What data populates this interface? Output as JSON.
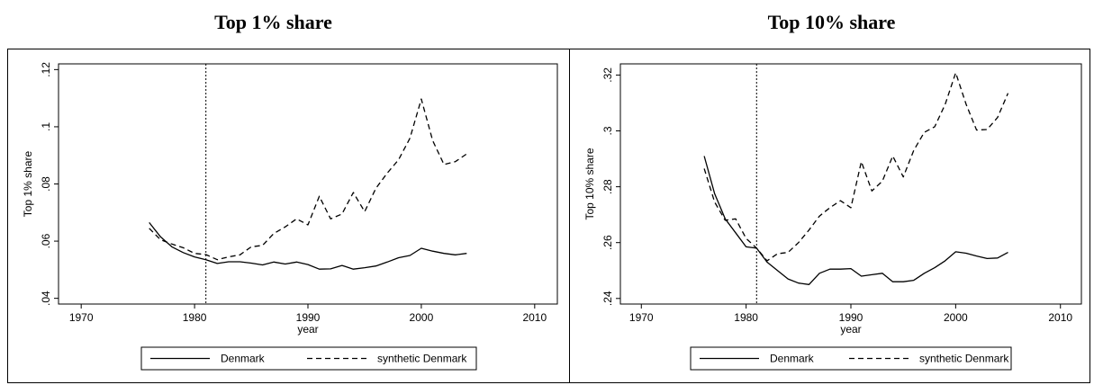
{
  "chart_data": [
    {
      "type": "line",
      "title": "Top 1% share",
      "xlabel": "year",
      "ylabel": "Top 1% share",
      "xlim": [
        1968,
        2012
      ],
      "ylim": [
        0.038,
        0.122
      ],
      "xticks": [
        1970,
        1980,
        1990,
        2000,
        2010
      ],
      "yticks": [
        0.04,
        0.06,
        0.08,
        0.1,
        0.12
      ],
      "ytick_labels": [
        ".04",
        ".06",
        ".08",
        ".1",
        ".12"
      ],
      "treatment_year": 1981,
      "grid": false,
      "legend_position": "bottom",
      "series": [
        {
          "name": "Denmark",
          "style": "solid",
          "x": [
            1976,
            1977,
            1978,
            1979,
            1980,
            1981,
            1982,
            1983,
            1984,
            1985,
            1986,
            1987,
            1988,
            1989,
            1990,
            1991,
            1992,
            1993,
            1994,
            1995,
            1996,
            1997,
            1998,
            1999,
            2000,
            2001,
            2002,
            2003,
            2004
          ],
          "y": [
            0.0665,
            0.0615,
            0.058,
            0.056,
            0.0545,
            0.0535,
            0.0522,
            0.0528,
            0.0528,
            0.0523,
            0.0517,
            0.0527,
            0.052,
            0.0527,
            0.0518,
            0.0502,
            0.0503,
            0.0515,
            0.0502,
            0.0507,
            0.0513,
            0.0527,
            0.0542,
            0.055,
            0.0575,
            0.0565,
            0.0557,
            0.0552,
            0.0557
          ]
        },
        {
          "name": "synthetic Denmark",
          "style": "dashed",
          "x": [
            1976,
            1977,
            1978,
            1979,
            1980,
            1981,
            1982,
            1983,
            1984,
            1985,
            1986,
            1987,
            1988,
            1989,
            1990,
            1991,
            1992,
            1993,
            1994,
            1995,
            1996,
            1997,
            1998,
            1999,
            2000,
            2001,
            2002,
            2003,
            2004
          ],
          "y": [
            0.0645,
            0.0605,
            0.059,
            0.0577,
            0.0557,
            0.0553,
            0.0535,
            0.0545,
            0.0552,
            0.058,
            0.0585,
            0.0627,
            0.065,
            0.0678,
            0.0657,
            0.0757,
            0.0678,
            0.0695,
            0.077,
            0.0703,
            0.0785,
            0.0838,
            0.0885,
            0.096,
            0.1097,
            0.0952,
            0.0868,
            0.0878,
            0.0905
          ]
        }
      ]
    },
    {
      "type": "line",
      "title": "Top 10% share",
      "xlabel": "year",
      "ylabel": "Top 10% share",
      "xlim": [
        1968,
        2012
      ],
      "ylim": [
        0.238,
        0.324
      ],
      "xticks": [
        1970,
        1980,
        1990,
        2000,
        2010
      ],
      "yticks": [
        0.24,
        0.26,
        0.28,
        0.3,
        0.32
      ],
      "ytick_labels": [
        ".24",
        ".26",
        ".28",
        ".3",
        ".32"
      ],
      "treatment_year": 1981,
      "grid": false,
      "legend_position": "bottom",
      "series": [
        {
          "name": "Denmark",
          "style": "solid",
          "x": [
            1976,
            1977,
            1978,
            1979,
            1980,
            1981,
            1982,
            1983,
            1984,
            1985,
            1986,
            1987,
            1988,
            1989,
            1990,
            1991,
            1992,
            1993,
            1994,
            1995,
            1996,
            1997,
            1998,
            1999,
            2000,
            2001,
            2002,
            2003,
            2004,
            2005
          ],
          "y": [
            0.291,
            0.2775,
            0.2685,
            0.2635,
            0.2585,
            0.258,
            0.253,
            0.25,
            0.247,
            0.2455,
            0.245,
            0.249,
            0.2505,
            0.2505,
            0.2507,
            0.248,
            0.2485,
            0.249,
            0.246,
            0.246,
            0.2465,
            0.249,
            0.251,
            0.2535,
            0.2567,
            0.2562,
            0.2552,
            0.2543,
            0.2545,
            0.2565
          ]
        },
        {
          "name": "synthetic Denmark",
          "style": "dashed",
          "x": [
            1976,
            1977,
            1978,
            1979,
            1980,
            1981,
            1982,
            1983,
            1984,
            1985,
            1986,
            1987,
            1988,
            1989,
            1990,
            1991,
            1992,
            1993,
            1994,
            1995,
            1996,
            1997,
            1998,
            1999,
            2000,
            2001,
            2002,
            2003,
            2004,
            2005
          ],
          "y": [
            0.2865,
            0.2745,
            0.268,
            0.2685,
            0.2615,
            0.258,
            0.2535,
            0.256,
            0.2565,
            0.26,
            0.2645,
            0.2695,
            0.2725,
            0.275,
            0.2725,
            0.289,
            0.2785,
            0.282,
            0.291,
            0.2835,
            0.293,
            0.2995,
            0.3015,
            0.3095,
            0.3208,
            0.3095,
            0.3003,
            0.3005,
            0.3048,
            0.3135
          ]
        }
      ]
    }
  ]
}
